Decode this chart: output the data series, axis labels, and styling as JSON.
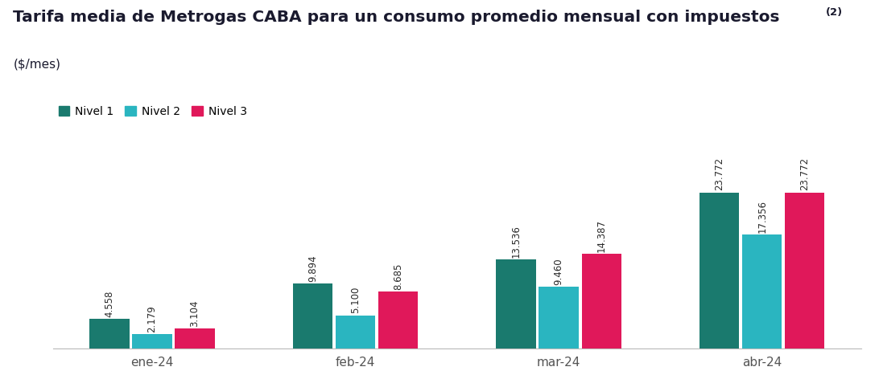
{
  "title_main": "Tarifa media de Metrogas CABA para un consumo promedio mensual con impuestos",
  "title_super": "(2)",
  "subtitle": "($/mes)",
  "categories": [
    "ene-24",
    "feb-24",
    "mar-24",
    "abr-24"
  ],
  "series": {
    "Nivel 1": [
      4558,
      9894,
      13536,
      23772
    ],
    "Nivel 2": [
      2179,
      5100,
      9460,
      17356
    ],
    "Nivel 3": [
      3104,
      8685,
      14387,
      23772
    ]
  },
  "bar_labels": {
    "Nivel 1": [
      "4.558",
      "9.894",
      "13.536",
      "23.772"
    ],
    "Nivel 2": [
      "2.179",
      "5.100",
      "9.460",
      "17.356"
    ],
    "Nivel 3": [
      "3.104",
      "8.685",
      "14.387",
      "23.772"
    ]
  },
  "colors": {
    "Nivel 1": "#1a7a6e",
    "Nivel 2": "#2ab5c0",
    "Nivel 3": "#e0185a"
  },
  "background_color": "#ffffff",
  "title_color": "#1a1a2e",
  "label_color": "#2a2a2a",
  "ylim": [
    0,
    28500
  ],
  "bar_width": 0.21,
  "title_fontsize": 14.5,
  "subtitle_fontsize": 11,
  "legend_fontsize": 10,
  "bar_label_fontsize": 8.5,
  "xtick_fontsize": 11
}
